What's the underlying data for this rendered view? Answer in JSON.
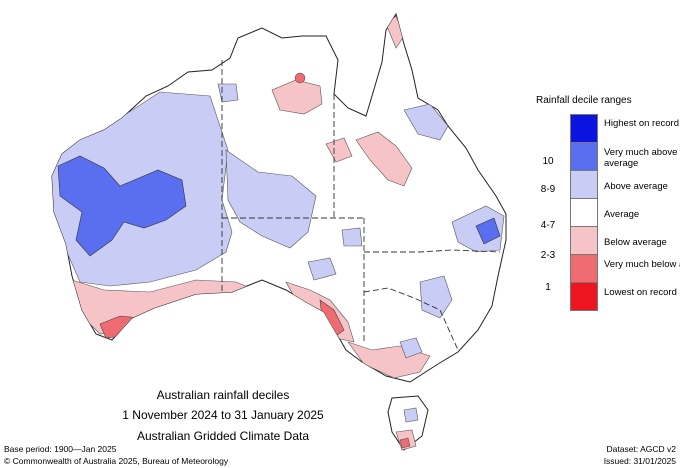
{
  "legend": {
    "title": "Rainfall decile ranges",
    "items": [
      {
        "label": "Highest on record",
        "color": "#0b13e0"
      },
      {
        "label": "Very much above average",
        "color": "#5a6ef0"
      },
      {
        "label": "Above average",
        "color": "#c9ccf5"
      },
      {
        "label": "Average",
        "color": "#ffffff"
      },
      {
        "label": "Below average",
        "color": "#f6c3c6"
      },
      {
        "label": "Very much below average",
        "color": "#ef6b72"
      },
      {
        "label": "Lowest on record",
        "color": "#ee1520"
      }
    ],
    "ticks": [
      "10",
      "8-9",
      "4-7",
      "2-3",
      "1"
    ]
  },
  "caption": {
    "line1": "Australian rainfall deciles",
    "line2": "1 November 2024 to 31 January 2025",
    "line3": "Australian Gridded Climate Data"
  },
  "footer": {
    "base_period": "Base period: 1900—Jan 2025",
    "dataset": "Dataset: AGCD v2",
    "copyright": "© Commonwealth of Australia 2025, Bureau of Meteorology",
    "issued": "Issued: 31/01/2025"
  }
}
